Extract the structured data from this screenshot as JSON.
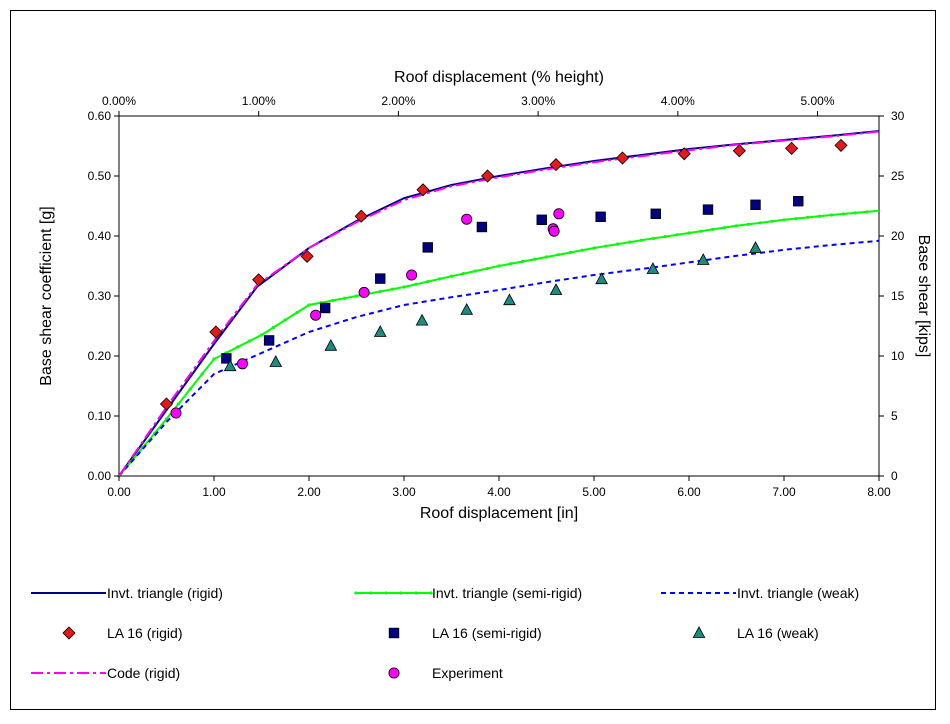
{
  "chart_data": {
    "type": "scatter",
    "title": "",
    "xlabel": "Roof displacement [in]",
    "ylabel": "Base shear coefficient [g]",
    "x2label": "Roof displacement (% height)",
    "y2label": "Base shear [kips]",
    "xlim": [
      0,
      8
    ],
    "ylim": [
      0,
      0.6
    ],
    "x2lim_percent": [
      0,
      5.44
    ],
    "y2lim_kips": [
      0,
      30
    ],
    "x_ticks": [
      "0.00",
      "1.00",
      "2.00",
      "3.00",
      "4.00",
      "5.00",
      "6.00",
      "7.00",
      "8.00"
    ],
    "y_ticks": [
      "0.00",
      "0.10",
      "0.20",
      "0.30",
      "0.40",
      "0.50",
      "0.60"
    ],
    "x2_ticks": [
      "0.00%",
      "1.00%",
      "2.00%",
      "3.00%",
      "4.00%",
      "5.00%"
    ],
    "y2_ticks": [
      "0",
      "5",
      "10",
      "15",
      "20",
      "25",
      "30"
    ],
    "grid": false,
    "legend_position": "bottom",
    "series": [
      {
        "name": "Invt. triangle (rigid)",
        "kind": "line",
        "style": "solid",
        "color": "#000080",
        "points": [
          [
            0,
            0
          ],
          [
            0.5,
            0.11
          ],
          [
            1.0,
            0.22
          ],
          [
            1.45,
            0.315
          ],
          [
            2.0,
            0.38
          ],
          [
            2.5,
            0.425
          ],
          [
            3.0,
            0.463
          ],
          [
            3.5,
            0.485
          ],
          [
            4.0,
            0.5
          ],
          [
            4.5,
            0.513
          ],
          [
            5.0,
            0.525
          ],
          [
            5.5,
            0.535
          ],
          [
            6.0,
            0.545
          ],
          [
            6.5,
            0.553
          ],
          [
            7.0,
            0.56
          ],
          [
            7.5,
            0.567
          ],
          [
            8.0,
            0.575
          ]
        ]
      },
      {
        "name": "Invt. triangle (semi-rigid)",
        "kind": "line",
        "style": "solid-markers",
        "color": "#00ff00",
        "points": [
          [
            0,
            0
          ],
          [
            0.5,
            0.095
          ],
          [
            1.0,
            0.195
          ],
          [
            1.5,
            0.235
          ],
          [
            2.0,
            0.285
          ],
          [
            2.5,
            0.3
          ],
          [
            3.0,
            0.315
          ],
          [
            3.5,
            0.333
          ],
          [
            4.0,
            0.35
          ],
          [
            4.5,
            0.365
          ],
          [
            5.0,
            0.38
          ],
          [
            5.5,
            0.393
          ],
          [
            6.0,
            0.405
          ],
          [
            6.5,
            0.417
          ],
          [
            7.0,
            0.427
          ],
          [
            7.5,
            0.435
          ],
          [
            8.0,
            0.442
          ]
        ]
      },
      {
        "name": "Invt. triangle (weak)",
        "kind": "line",
        "style": "dashed",
        "color": "#0000ff",
        "points": [
          [
            0,
            0
          ],
          [
            0.5,
            0.09
          ],
          [
            1.0,
            0.17
          ],
          [
            1.5,
            0.205
          ],
          [
            2.0,
            0.24
          ],
          [
            2.5,
            0.265
          ],
          [
            3.0,
            0.285
          ],
          [
            3.5,
            0.298
          ],
          [
            4.0,
            0.31
          ],
          [
            4.5,
            0.323
          ],
          [
            5.0,
            0.335
          ],
          [
            5.5,
            0.345
          ],
          [
            6.0,
            0.356
          ],
          [
            6.5,
            0.367
          ],
          [
            7.0,
            0.377
          ],
          [
            7.5,
            0.385
          ],
          [
            8.0,
            0.392
          ]
        ]
      },
      {
        "name": "LA 16 (rigid)",
        "kind": "marker",
        "marker": "diamond",
        "color": "#e31a1c",
        "points": [
          [
            0.5,
            0.12
          ],
          [
            1.02,
            0.24
          ],
          [
            1.47,
            0.327
          ],
          [
            1.98,
            0.366
          ],
          [
            2.55,
            0.433
          ],
          [
            3.2,
            0.477
          ],
          [
            3.88,
            0.5
          ],
          [
            4.6,
            0.519
          ],
          [
            5.3,
            0.53
          ],
          [
            5.95,
            0.537
          ],
          [
            6.53,
            0.542
          ],
          [
            7.08,
            0.546
          ],
          [
            7.6,
            0.551
          ]
        ]
      },
      {
        "name": "LA 16 (semi-rigid)",
        "kind": "marker",
        "marker": "square",
        "color": "#000080",
        "points": [
          [
            1.13,
            0.196
          ],
          [
            1.58,
            0.226
          ],
          [
            2.17,
            0.28
          ],
          [
            2.75,
            0.329
          ],
          [
            3.25,
            0.381
          ],
          [
            3.82,
            0.415
          ],
          [
            4.45,
            0.427
          ],
          [
            5.07,
            0.432
          ],
          [
            5.65,
            0.437
          ],
          [
            6.2,
            0.444
          ],
          [
            6.7,
            0.452
          ],
          [
            7.15,
            0.458
          ]
        ]
      },
      {
        "name": "LA 16 (weak)",
        "kind": "marker",
        "marker": "triangle",
        "color": "#1f8a80",
        "points": [
          [
            1.17,
            0.183
          ],
          [
            1.65,
            0.19
          ],
          [
            2.23,
            0.217
          ],
          [
            2.75,
            0.24
          ],
          [
            3.19,
            0.259
          ],
          [
            3.66,
            0.277
          ],
          [
            4.11,
            0.293
          ],
          [
            4.6,
            0.31
          ],
          [
            5.08,
            0.328
          ],
          [
            5.62,
            0.345
          ],
          [
            6.15,
            0.36
          ],
          [
            6.7,
            0.38
          ]
        ]
      },
      {
        "name": "Code (rigid)",
        "kind": "line",
        "style": "dashdot",
        "color": "#ff00ff",
        "points": [
          [
            0,
            0
          ],
          [
            0.5,
            0.115
          ],
          [
            1.0,
            0.225
          ],
          [
            1.45,
            0.318
          ],
          [
            2.0,
            0.38
          ],
          [
            2.5,
            0.423
          ],
          [
            3.0,
            0.46
          ],
          [
            3.5,
            0.483
          ],
          [
            4.0,
            0.498
          ],
          [
            4.5,
            0.511
          ],
          [
            5.0,
            0.523
          ],
          [
            5.5,
            0.533
          ],
          [
            6.0,
            0.543
          ],
          [
            6.5,
            0.552
          ],
          [
            7.0,
            0.559
          ],
          [
            7.5,
            0.566
          ],
          [
            8.0,
            0.574
          ]
        ]
      },
      {
        "name": "Experiment",
        "kind": "marker",
        "marker": "circle",
        "color": "#ff00ff",
        "points": [
          [
            0.6,
            0.105
          ],
          [
            1.3,
            0.187
          ],
          [
            2.07,
            0.268
          ],
          [
            2.58,
            0.306
          ],
          [
            3.08,
            0.335
          ],
          [
            3.66,
            0.428
          ],
          [
            4.57,
            0.412
          ],
          [
            4.58,
            0.408
          ],
          [
            4.63,
            0.437
          ]
        ]
      }
    ]
  }
}
